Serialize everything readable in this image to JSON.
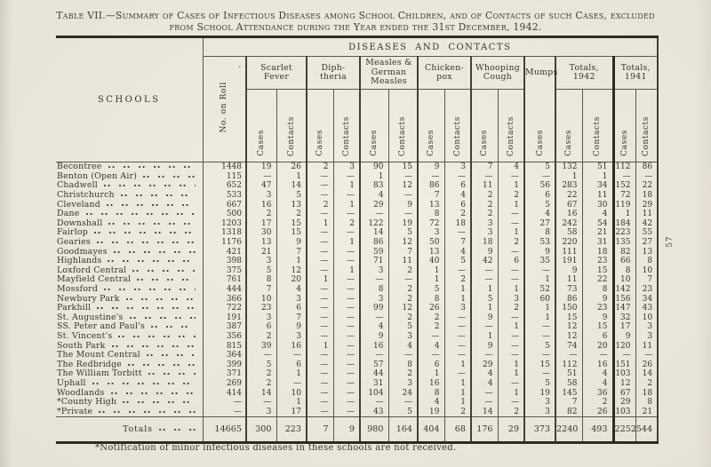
{
  "page": {
    "number": "57",
    "footnote": "*Notification of minor infectious diseases in these schools are not received.",
    "artifact_mark": "."
  },
  "title": {
    "line1": "Table VII.—Summary of Cases of Infectious Diseases among School Children, and of Contacts of such Cases, excluded",
    "line2": "from School Attendance during the Year ended the 31st December, 1942."
  },
  "colors": {
    "paper": "#e5e1d4",
    "ink": "#38342a",
    "rule_thin": "#5d5747",
    "rule_thick": "#2e2b23"
  },
  "table": {
    "schools_header": "SCHOOLS",
    "band_header": "DISEASES AND CONTACTS",
    "roll_header": "No. on Roll",
    "groups": [
      {
        "label": "Scarlet\nFever"
      },
      {
        "label": "Diph-\ntheria"
      },
      {
        "label": "Measles &\nGerman\nMeasles"
      },
      {
        "label": "Chicken-\npox"
      },
      {
        "label": "Whooping\nCough"
      },
      {
        "label": "Mumps"
      },
      {
        "label": "Totals,\n1942"
      },
      {
        "label": "Totals,\n1941"
      }
    ],
    "sub_labels": [
      "Cases",
      "Contacts",
      "Cases",
      "Contacts",
      "Cases",
      "Contacts",
      "Cases",
      "Contacts",
      "Cases",
      "Contacts",
      "Cases",
      "Cases",
      "Contacts",
      "Cases",
      "Contacts"
    ],
    "rows": [
      {
        "name": "Becontree",
        "values": [
          "1448",
          "19",
          "26",
          "2",
          "3",
          "90",
          "15",
          "9",
          "3",
          "7",
          "4",
          "5",
          "132",
          "51",
          "112",
          "86"
        ]
      },
      {
        "name": "Benton (Open Air)",
        "values": [
          "115",
          "—",
          "1",
          "—",
          "—",
          "1",
          "—",
          "—",
          "—",
          "—",
          "—",
          "—",
          "1",
          "1",
          "—",
          "—"
        ]
      },
      {
        "name": "Chadwell",
        "values": [
          "652",
          "47",
          "14",
          "—",
          "1",
          "83",
          "12",
          "86",
          "6",
          "11",
          "1",
          "56",
          "283",
          "34",
          "152",
          "22"
        ]
      },
      {
        "name": "Christchurch",
        "values": [
          "533",
          "3",
          "5",
          "—",
          "—",
          "4",
          "—",
          "7",
          "4",
          "2",
          "2",
          "6",
          "22",
          "11",
          "72",
          "18"
        ]
      },
      {
        "name": "Cleveland",
        "values": [
          "667",
          "16",
          "13",
          "2",
          "1",
          "29",
          "9",
          "13",
          "6",
          "2",
          "1",
          "5",
          "67",
          "30",
          "119",
          "29"
        ]
      },
      {
        "name": "Dane",
        "values": [
          "500",
          "2",
          "2",
          "—",
          "—",
          "—",
          "—",
          "8",
          "2",
          "2",
          "—",
          "4",
          "16",
          "4",
          "1",
          "11"
        ]
      },
      {
        "name": "Downshall",
        "values": [
          "1203",
          "17",
          "15",
          "1",
          "2",
          "122",
          "19",
          "72",
          "18",
          "3",
          "—",
          "27",
          "242",
          "54",
          "184",
          "42"
        ]
      },
      {
        "name": "Fairlop",
        "values": [
          "1318",
          "30",
          "15",
          "—",
          "—",
          "14",
          "5",
          "3",
          "—",
          "3",
          "1",
          "8",
          "58",
          "21",
          "223",
          "55"
        ]
      },
      {
        "name": "Gearies",
        "values": [
          "1176",
          "13",
          "9",
          "—",
          "1",
          "86",
          "12",
          "50",
          "7",
          "18",
          "2",
          "53",
          "220",
          "31",
          "135",
          "27"
        ]
      },
      {
        "name": "Goodmayes",
        "values": [
          "421",
          "21",
          "7",
          "—",
          "—",
          "59",
          "7",
          "13",
          "4",
          "9",
          "—",
          "9",
          "111",
          "18",
          "82",
          "13"
        ]
      },
      {
        "name": "Highlands",
        "values": [
          "398",
          "3",
          "1",
          "—",
          "—",
          "71",
          "11",
          "40",
          "5",
          "42",
          "6",
          "35",
          "191",
          "23",
          "66",
          "8"
        ]
      },
      {
        "name": "Loxford Central",
        "values": [
          "375",
          "5",
          "12",
          "—",
          "1",
          "3",
          "2",
          "1",
          "—",
          "—",
          "—",
          "—",
          "9",
          "15",
          "8",
          "10"
        ]
      },
      {
        "name": "Mayfield Central",
        "values": [
          "761",
          "8",
          "20",
          "1",
          "—",
          "—",
          "—",
          "1",
          "2",
          "—",
          "—",
          "1",
          "11",
          "22",
          "10",
          "7"
        ]
      },
      {
        "name": "Mossford",
        "values": [
          "444",
          "7",
          "4",
          "—",
          "—",
          "8",
          "2",
          "5",
          "1",
          "1",
          "1",
          "52",
          "73",
          "8",
          "142",
          "23"
        ]
      },
      {
        "name": "Newbury Park",
        "values": [
          "366",
          "10",
          "3",
          "—",
          "—",
          "3",
          "2",
          "8",
          "1",
          "5",
          "3",
          "60",
          "86",
          "9",
          "156",
          "34"
        ]
      },
      {
        "name": "Parkhill",
        "values": [
          "722",
          "23",
          "6",
          "—",
          "—",
          "99",
          "12",
          "26",
          "3",
          "1",
          "2",
          "1",
          "150",
          "23",
          "147",
          "43"
        ]
      },
      {
        "name": "St. Augustine's",
        "values": [
          "191",
          "3",
          "7",
          "—",
          "—",
          "—",
          "2",
          "2",
          "—",
          "9",
          "—",
          "1",
          "15",
          "9",
          "32",
          "10"
        ]
      },
      {
        "name": "SS. Peter and Paul's",
        "values": [
          "387",
          "6",
          "9",
          "—",
          "—",
          "4",
          "5",
          "2",
          "—",
          "—",
          "1",
          "—",
          "12",
          "15",
          "17",
          "3"
        ]
      },
      {
        "name": "St. Vincent's",
        "values": [
          "356",
          "2",
          "3",
          "—",
          "—",
          "9",
          "3",
          "—",
          "—",
          "1",
          "—",
          "—",
          "12",
          "6",
          "9",
          "3"
        ]
      },
      {
        "name": "South Park",
        "values": [
          "815",
          "39",
          "16",
          "1",
          "—",
          "16",
          "4",
          "4",
          "—",
          "9",
          "—",
          "5",
          "74",
          "20",
          "120",
          "11"
        ]
      },
      {
        "name": "The Mount Central",
        "values": [
          "364",
          "—",
          "—",
          "—",
          "—",
          "—",
          "—",
          "—",
          "—",
          "—",
          "—",
          "—",
          "—",
          "—",
          "—",
          "—"
        ]
      },
      {
        "name": "The Redbridge",
        "values": [
          "399",
          "5",
          "6",
          "—",
          "—",
          "57",
          "8",
          "6",
          "1",
          "29",
          "1",
          "15",
          "112",
          "16",
          "151",
          "26"
        ]
      },
      {
        "name": "The William Torbitt",
        "values": [
          "371",
          "2",
          "1",
          "—",
          "—",
          "44",
          "2",
          "1",
          "—",
          "4",
          "1",
          "—",
          "51",
          "4",
          "103",
          "14"
        ]
      },
      {
        "name": "Uphall",
        "values": [
          "269",
          "2",
          "—",
          "—",
          "—",
          "31",
          "3",
          "16",
          "1",
          "4",
          "—",
          "5",
          "58",
          "4",
          "12",
          "2"
        ]
      },
      {
        "name": "Woodlands",
        "values": [
          "414",
          "14",
          "10",
          "—",
          "—",
          "104",
          "24",
          "8",
          "1",
          "—",
          "1",
          "19",
          "145",
          "36",
          "67",
          "18"
        ]
      },
      {
        "name": "*County High",
        "values": [
          "—",
          "—",
          "1",
          "—",
          "—",
          "—",
          "—",
          "4",
          "1",
          "—",
          "—",
          "3",
          "7",
          "2",
          "29",
          "8"
        ]
      },
      {
        "name": "*Private",
        "values": [
          "—",
          "3",
          "17",
          "—",
          "—",
          "43",
          "5",
          "19",
          "2",
          "14",
          "2",
          "3",
          "82",
          "26",
          "103",
          "21"
        ]
      }
    ],
    "totals": {
      "label": "Totals",
      "values": [
        "14665",
        "300",
        "223",
        "7",
        "9",
        "980",
        "164",
        "404",
        "68",
        "176",
        "29",
        "373",
        "2240",
        "493",
        "2252",
        "544"
      ]
    }
  }
}
